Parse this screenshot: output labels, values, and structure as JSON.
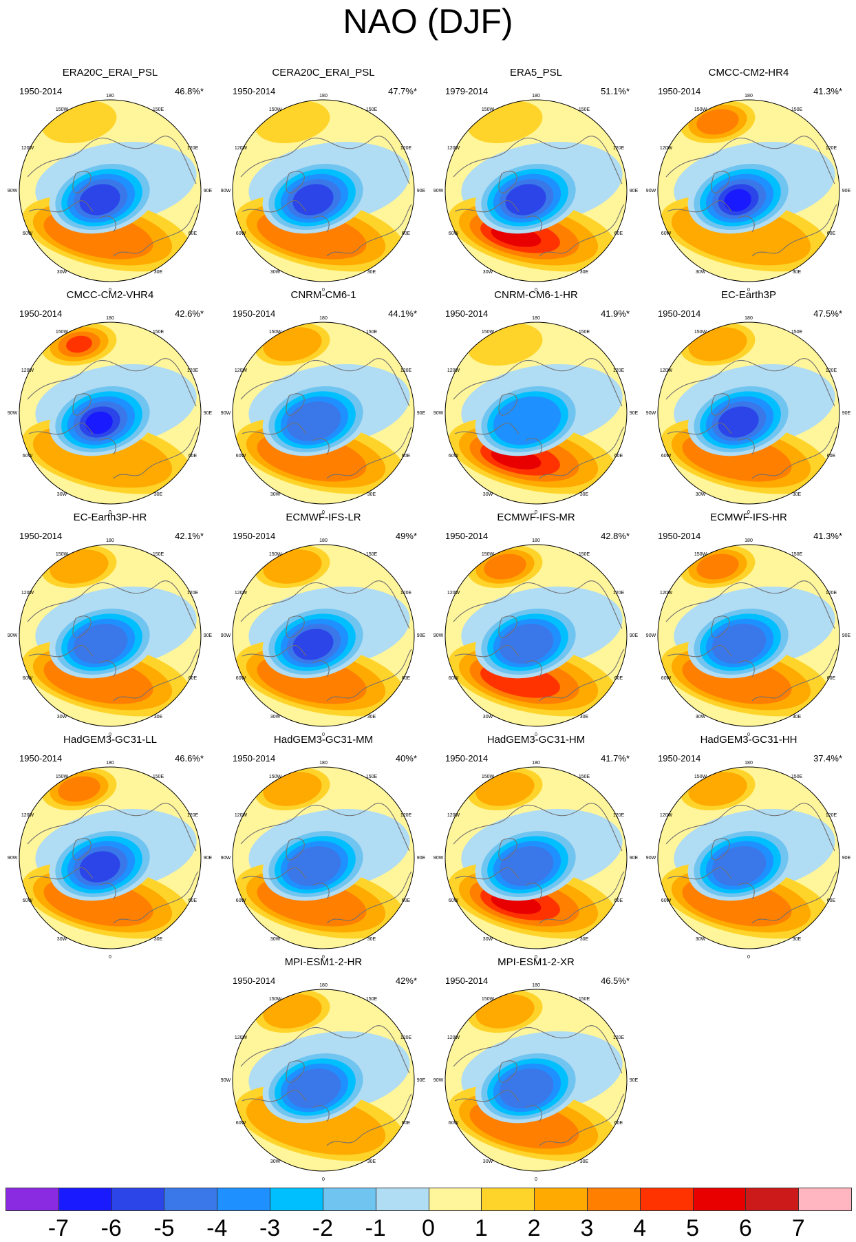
{
  "title": "NAO (DJF)",
  "meridians": [
    "180",
    "150W",
    "150E",
    "120W",
    "120E",
    "90W",
    "90E",
    "60W",
    "60E",
    "30W",
    "30E",
    "0"
  ],
  "panels": [
    {
      "name": "ERA20C_ERAI_PSL",
      "period": "1950-2014",
      "variance": "46.8%*",
      "center_min": -6,
      "atl_max": 3,
      "pac_max": 1
    },
    {
      "name": "CERA20C_ERAI_PSL",
      "period": "1950-2014",
      "variance": "47.7%*",
      "center_min": -6,
      "atl_max": 3,
      "pac_max": 1
    },
    {
      "name": "ERA5_PSL",
      "period": "1979-2014",
      "variance": "51.1%*",
      "center_min": -6,
      "atl_max": 5,
      "pac_max": 1
    },
    {
      "name": "CMCC-CM2-HR4",
      "period": "1950-2014",
      "variance": "41.3%*",
      "center_min": -7,
      "atl_max": 2,
      "pac_max": 3
    },
    {
      "name": "CMCC-CM2-VHR4",
      "period": "1950-2014",
      "variance": "42.6%*",
      "center_min": -7,
      "atl_max": 2,
      "pac_max": 4
    },
    {
      "name": "CNRM-CM6-1",
      "period": "1950-2014",
      "variance": "44.1%*",
      "center_min": -5,
      "atl_max": 3,
      "pac_max": 2
    },
    {
      "name": "CNRM-CM6-1-HR",
      "period": "1950-2014",
      "variance": "41.9%*",
      "center_min": -4,
      "atl_max": 5,
      "pac_max": 1
    },
    {
      "name": "EC-Earth3P",
      "period": "1950-2014",
      "variance": "47.5%*",
      "center_min": -6,
      "atl_max": 3,
      "pac_max": 2
    },
    {
      "name": "EC-Earth3P-HR",
      "period": "1950-2014",
      "variance": "42.1%*",
      "center_min": -5,
      "atl_max": 3,
      "pac_max": 2
    },
    {
      "name": "ECMWF-IFS-LR",
      "period": "1950-2014",
      "variance": "49%*",
      "center_min": -6,
      "atl_max": 3,
      "pac_max": 2
    },
    {
      "name": "ECMWF-IFS-MR",
      "period": "1950-2014",
      "variance": "42.8%*",
      "center_min": -5,
      "atl_max": 4,
      "pac_max": 3
    },
    {
      "name": "ECMWF-IFS-HR",
      "period": "1950-2014",
      "variance": "41.3%*",
      "center_min": -5,
      "atl_max": 3,
      "pac_max": 3
    },
    {
      "name": "HadGEM3-GC31-LL",
      "period": "1950-2014",
      "variance": "46.6%*",
      "center_min": -6,
      "atl_max": 3,
      "pac_max": 3
    },
    {
      "name": "HadGEM3-GC31-MM",
      "period": "1950-2014",
      "variance": "40%*",
      "center_min": -5,
      "atl_max": 3,
      "pac_max": 2
    },
    {
      "name": "HadGEM3-GC31-HM",
      "period": "1950-2014",
      "variance": "41.7%*",
      "center_min": -5,
      "atl_max": 5,
      "pac_max": 2
    },
    {
      "name": "HadGEM3-GC31-HH",
      "period": "1950-2014",
      "variance": "37.4%*",
      "center_min": -5,
      "atl_max": 3,
      "pac_max": 2
    },
    {
      "name": "MPI-ESM1-2-HR",
      "period": "1950-2014",
      "variance": "42%*",
      "center_min": -5,
      "atl_max": 2,
      "pac_max": 2
    },
    {
      "name": "MPI-ESM1-2-XR",
      "period": "1950-2014",
      "variance": "46.5%*",
      "center_min": -5,
      "atl_max": 3,
      "pac_max": 2
    }
  ],
  "colorbar": {
    "labels": [
      "-7",
      "-6",
      "-5",
      "-4",
      "-3",
      "-2",
      "-1",
      "0",
      "1",
      "2",
      "3",
      "4",
      "5",
      "6",
      "7"
    ],
    "colors": [
      "#8a2be2",
      "#1a1aff",
      "#2b45e8",
      "#3a78ea",
      "#1e90ff",
      "#00bfff",
      "#70c4f0",
      "#b0dcf4",
      "#fff59a",
      "#ffd42a",
      "#ffaa00",
      "#ff7f00",
      "#ff3300",
      "#e80000",
      "#cc1a1a",
      "#ffb6c1"
    ]
  }
}
